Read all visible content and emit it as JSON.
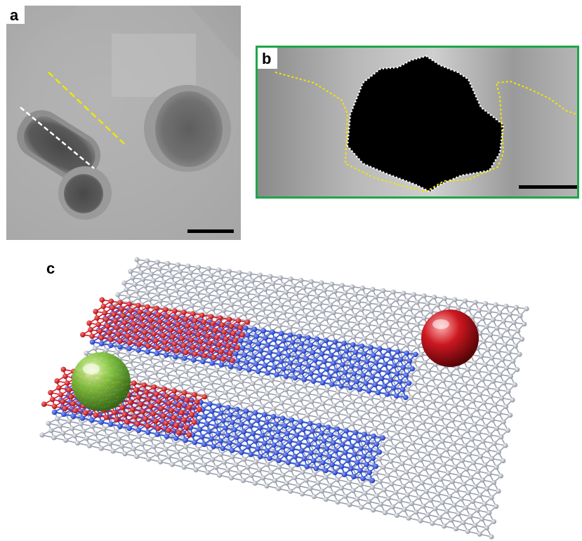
{
  "panels": {
    "a": {
      "label": "a"
    },
    "b": {
      "label": "b"
    },
    "c": {
      "label": "c"
    }
  },
  "colors": {
    "panel_b_border": "#1ea64b",
    "guide_yellow": "#f2e600",
    "guide_white": "#ffffff",
    "atom_gray": "#b9bcc6",
    "atom_blue": "#2b4fe0",
    "atom_red": "#e3141c",
    "sphere_green": "#7fc33a",
    "sphere_red": "#cc1820"
  },
  "icons": {
    "scale_bar": "scale-bar-icon",
    "sphere_green": "green-sphere-icon",
    "sphere_red": "red-sphere-icon"
  }
}
